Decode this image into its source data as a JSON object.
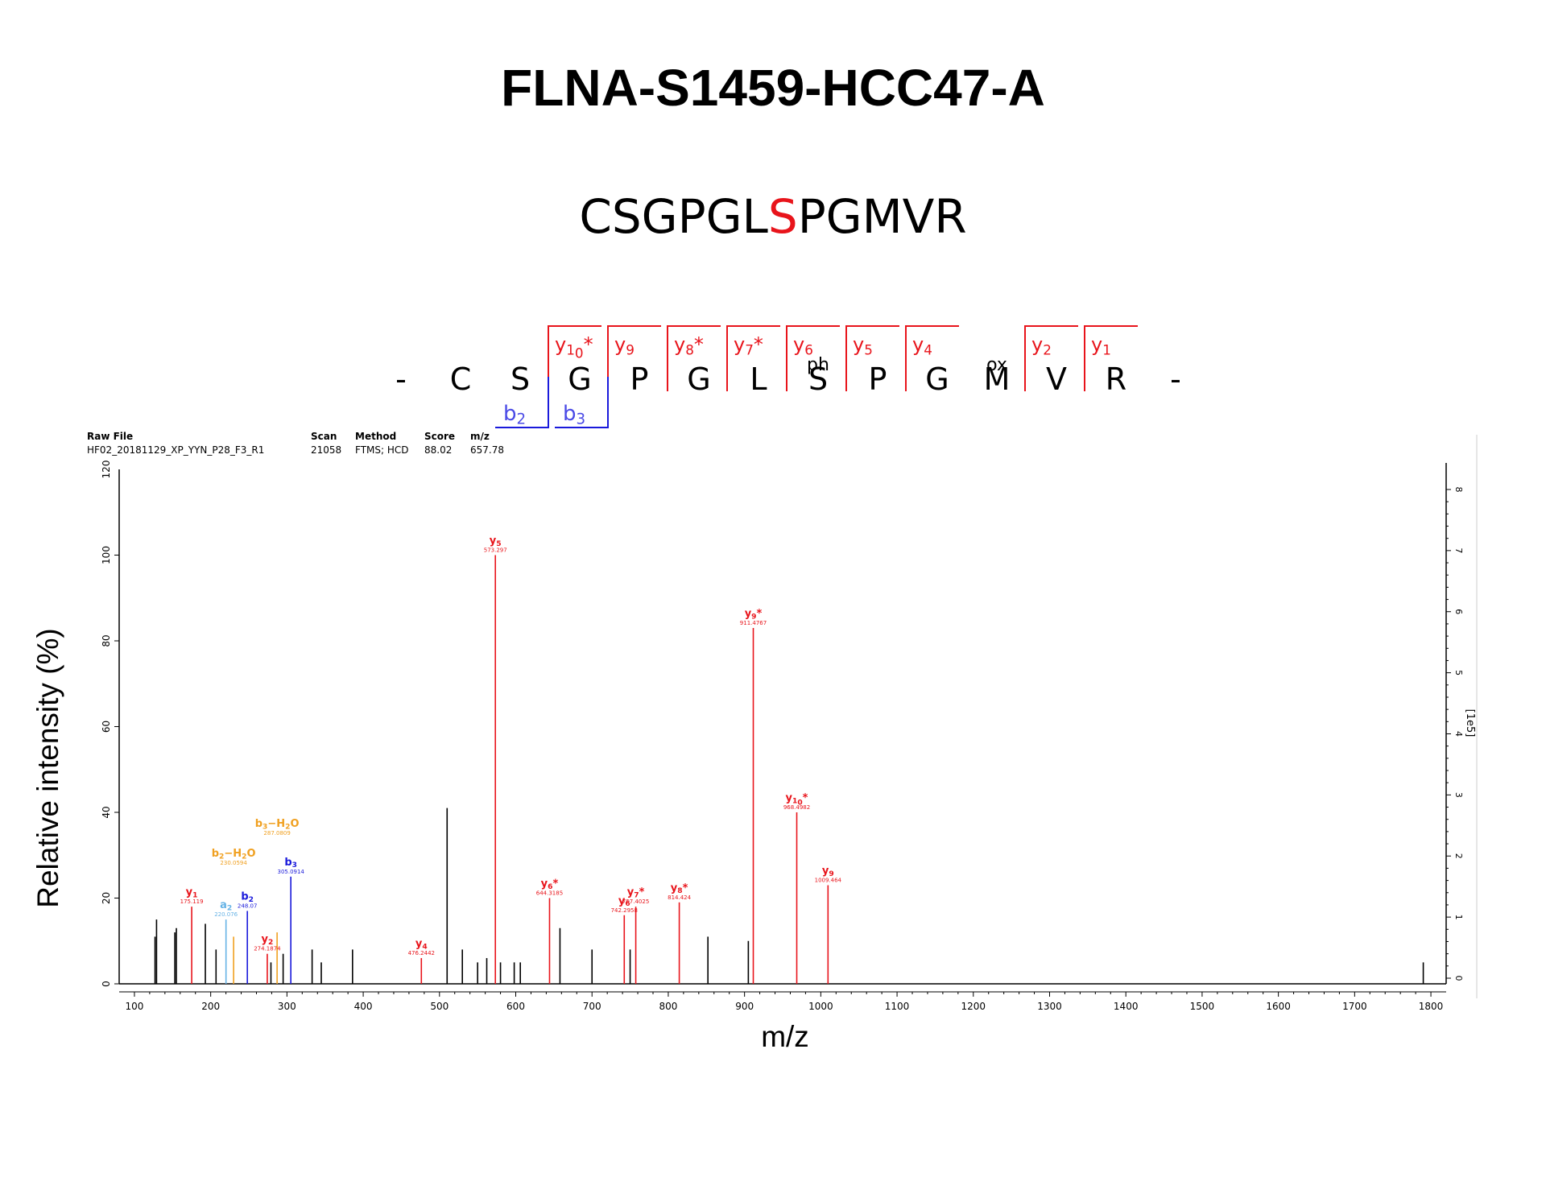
{
  "title": "FLNA-S1459-HCC47-A",
  "peptide": {
    "before": "CSGPGL",
    "site": "S",
    "after": "PGMVR",
    "site_color": "#e8141b"
  },
  "colors": {
    "y": "#e8141b",
    "b": "#1a1adb",
    "a": "#66b3e6",
    "neutral_loss": "#f0a020",
    "other": "#000000"
  },
  "meta": {
    "raw_file_label": "Raw File",
    "raw_file": "HF02_20181129_XP_YYN_P28_F3_R1",
    "scan_label": "Scan",
    "scan": "21058",
    "method_label": "Method",
    "method": "FTMS; HCD",
    "score_label": "Score",
    "score": "88.02",
    "mz_label": "m/z",
    "mz": "657.78"
  },
  "fragment_map": {
    "residues": [
      "-",
      "C",
      "S",
      "G",
      "P",
      "G",
      "L",
      "S",
      "P",
      "G",
      "M",
      "V",
      "R",
      "-"
    ],
    "mods": [
      {
        "residue": 7,
        "text": "ph"
      },
      {
        "residue": 10,
        "text": "ox"
      }
    ],
    "y_ions": [
      {
        "residue": 3,
        "label": "y10*"
      },
      {
        "residue": 4,
        "label": "y9"
      },
      {
        "residue": 5,
        "label": "y8*"
      },
      {
        "residue": 6,
        "label": "y7*"
      },
      {
        "residue": 7,
        "label": "y6"
      },
      {
        "residue": 8,
        "label": "y5"
      },
      {
        "residue": 9,
        "label": "y4"
      },
      {
        "residue": 11,
        "label": "y2"
      },
      {
        "residue": 12,
        "label": "y1"
      }
    ],
    "b_ions": [
      {
        "residue": 2,
        "label": "b2"
      },
      {
        "residue": 3,
        "label": "b3"
      }
    ]
  },
  "chart_data": {
    "type": "bar",
    "xlabel": "m/z",
    "ylabel": "Relative intensity (%)",
    "xlim": [
      80,
      1820
    ],
    "ylim": [
      0,
      120
    ],
    "x_ticks": [
      100,
      200,
      300,
      400,
      500,
      600,
      700,
      800,
      900,
      1000,
      1100,
      1200,
      1300,
      1400,
      1500,
      1600,
      1700,
      1800
    ],
    "y_ticks": [
      0,
      20,
      40,
      60,
      80,
      100
    ],
    "y_ticks_label_top": "120",
    "y2_ticks": [
      "0",
      "1",
      "2",
      "3",
      "4",
      "5",
      "6",
      "7",
      "8"
    ],
    "y2_label": "[1e5]",
    "peaks": [
      {
        "mz": 127,
        "intensity": 11,
        "kind": "other"
      },
      {
        "mz": 129,
        "intensity": 15,
        "kind": "other"
      },
      {
        "mz": 153,
        "intensity": 12,
        "kind": "other"
      },
      {
        "mz": 155,
        "intensity": 13,
        "kind": "other"
      },
      {
        "mz": 175.119,
        "intensity": 18,
        "kind": "y",
        "label": "y1",
        "sublabel": "175.119"
      },
      {
        "mz": 193,
        "intensity": 14,
        "kind": "other"
      },
      {
        "mz": 207,
        "intensity": 8,
        "kind": "other"
      },
      {
        "mz": 220.076,
        "intensity": 15,
        "kind": "a",
        "label": "a2",
        "sublabel": "220.076"
      },
      {
        "mz": 230.0594,
        "intensity": 11,
        "kind": "neutral_loss",
        "label": "b2-H2O",
        "sublabel": "230.0594",
        "label_intensity": 27
      },
      {
        "mz": 248.07,
        "intensity": 17,
        "kind": "b",
        "label": "b2",
        "sublabel": "248.07"
      },
      {
        "mz": 274.1874,
        "intensity": 7,
        "kind": "y",
        "label": "y2",
        "sublabel": "274.1874"
      },
      {
        "mz": 279,
        "intensity": 5,
        "kind": "other"
      },
      {
        "mz": 287.0809,
        "intensity": 12,
        "kind": "neutral_loss",
        "label": "b3-H2O",
        "sublabel": "287.0809",
        "label_intensity": 34
      },
      {
        "mz": 295,
        "intensity": 7,
        "kind": "other"
      },
      {
        "mz": 305.0914,
        "intensity": 25,
        "kind": "b",
        "label": "b3",
        "sublabel": "305.0914"
      },
      {
        "mz": 333,
        "intensity": 8,
        "kind": "other"
      },
      {
        "mz": 345,
        "intensity": 5,
        "kind": "other"
      },
      {
        "mz": 386,
        "intensity": 8,
        "kind": "other"
      },
      {
        "mz": 476.2442,
        "intensity": 6,
        "kind": "y",
        "label": "y4",
        "sublabel": "476.2442"
      },
      {
        "mz": 510,
        "intensity": 41,
        "kind": "other"
      },
      {
        "mz": 530,
        "intensity": 8,
        "kind": "other"
      },
      {
        "mz": 550,
        "intensity": 5,
        "kind": "other"
      },
      {
        "mz": 562,
        "intensity": 6,
        "kind": "other"
      },
      {
        "mz": 573.297,
        "intensity": 100,
        "kind": "y",
        "label": "y5",
        "sublabel": "573.297"
      },
      {
        "mz": 580,
        "intensity": 5,
        "kind": "other"
      },
      {
        "mz": 598,
        "intensity": 5,
        "kind": "other"
      },
      {
        "mz": 606,
        "intensity": 5,
        "kind": "other"
      },
      {
        "mz": 644.3185,
        "intensity": 20,
        "kind": "y",
        "label": "y6*",
        "sublabel": "644.3185"
      },
      {
        "mz": 658,
        "intensity": 13,
        "kind": "other"
      },
      {
        "mz": 700,
        "intensity": 8,
        "kind": "other"
      },
      {
        "mz": 742.2958,
        "intensity": 16,
        "kind": "y",
        "label": "y6",
        "sublabel": "742.2958"
      },
      {
        "mz": 750,
        "intensity": 8,
        "kind": "other"
      },
      {
        "mz": 757.4025,
        "intensity": 18,
        "kind": "y",
        "label": "y7*",
        "sublabel": "757.4025"
      },
      {
        "mz": 814.424,
        "intensity": 19,
        "kind": "y",
        "label": "y8*",
        "sublabel": "814.424"
      },
      {
        "mz": 852,
        "intensity": 11,
        "kind": "other"
      },
      {
        "mz": 905,
        "intensity": 10,
        "kind": "other"
      },
      {
        "mz": 911.4767,
        "intensity": 83,
        "kind": "y",
        "label": "y9*",
        "sublabel": "911.4767"
      },
      {
        "mz": 968.4982,
        "intensity": 40,
        "kind": "y",
        "label": "y10*",
        "sublabel": "968.4982"
      },
      {
        "mz": 1009.464,
        "intensity": 23,
        "kind": "y",
        "label": "y9",
        "sublabel": "1009.464"
      },
      {
        "mz": 1790,
        "intensity": 5,
        "kind": "other"
      }
    ]
  }
}
